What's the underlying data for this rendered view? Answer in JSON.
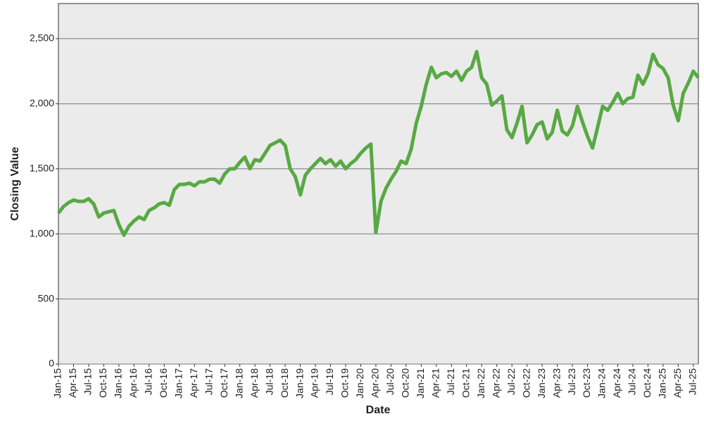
{
  "chart_data": {
    "type": "line",
    "x_label": "Date",
    "y_label": "Closing Value",
    "x": [
      "Jan-15",
      "Feb-15",
      "Mar-15",
      "Apr-15",
      "May-15",
      "Jun-15",
      "Jul-15",
      "Aug-15",
      "Sep-15",
      "Oct-15",
      "Nov-15",
      "Dec-15",
      "Jan-16",
      "Feb-16",
      "Mar-16",
      "Apr-16",
      "May-16",
      "Jun-16",
      "Jul-16",
      "Aug-16",
      "Sep-16",
      "Oct-16",
      "Nov-16",
      "Dec-16",
      "Jan-17",
      "Feb-17",
      "Mar-17",
      "Apr-17",
      "May-17",
      "Jun-17",
      "Jul-17",
      "Aug-17",
      "Sep-17",
      "Oct-17",
      "Nov-17",
      "Dec-17",
      "Jan-18",
      "Feb-18",
      "Mar-18",
      "Apr-18",
      "May-18",
      "Jun-18",
      "Jul-18",
      "Aug-18",
      "Sep-18",
      "Oct-18",
      "Nov-18",
      "Dec-18",
      "Jan-19",
      "Feb-19",
      "Mar-19",
      "Apr-19",
      "May-19",
      "Jun-19",
      "Jul-19",
      "Aug-19",
      "Sep-19",
      "Oct-19",
      "Nov-19",
      "Dec-19",
      "Jan-20",
      "Feb-20",
      "Mar-20",
      "Apr-20",
      "May-20",
      "Jun-20",
      "Jul-20",
      "Aug-20",
      "Sep-20",
      "Oct-20",
      "Nov-20",
      "Dec-20",
      "Jan-21",
      "Feb-21",
      "Mar-21",
      "Apr-21",
      "May-21",
      "Jun-21",
      "Jul-21",
      "Aug-21",
      "Sep-21",
      "Oct-21",
      "Nov-21",
      "Dec-21",
      "Jan-22",
      "Feb-22",
      "Mar-22",
      "Apr-22",
      "May-22",
      "Jun-22",
      "Jul-22",
      "Aug-22",
      "Sep-22",
      "Oct-22",
      "Nov-22",
      "Dec-22",
      "Jan-23",
      "Feb-23",
      "Mar-23",
      "Apr-23",
      "May-23",
      "Jun-23",
      "Jul-23",
      "Aug-23",
      "Sep-23",
      "Oct-23",
      "Nov-23",
      "Dec-23",
      "Jan-24",
      "Feb-24",
      "Mar-24",
      "Apr-24",
      "May-24",
      "Jun-24",
      "Jul-24",
      "Aug-24",
      "Sep-24",
      "Oct-24",
      "Nov-24",
      "Dec-24",
      "Jan-25",
      "Feb-25",
      "Mar-25",
      "Apr-25",
      "May-25",
      "Jun-25",
      "Jul-25",
      "Aug-25"
    ],
    "series": [
      {
        "name": "Closing Value",
        "color": "#58a944",
        "values": [
          1160,
          1210,
          1240,
          1260,
          1250,
          1250,
          1270,
          1230,
          1130,
          1160,
          1170,
          1180,
          1070,
          990,
          1060,
          1100,
          1130,
          1110,
          1180,
          1200,
          1230,
          1240,
          1220,
          1340,
          1380,
          1380,
          1390,
          1370,
          1400,
          1400,
          1420,
          1420,
          1390,
          1460,
          1500,
          1500,
          1550,
          1590,
          1500,
          1570,
          1560,
          1620,
          1680,
          1700,
          1720,
          1680,
          1500,
          1440,
          1300,
          1450,
          1500,
          1540,
          1580,
          1540,
          1570,
          1520,
          1560,
          1500,
          1540,
          1570,
          1620,
          1660,
          1690,
          1010,
          1250,
          1350,
          1420,
          1480,
          1560,
          1540,
          1650,
          1850,
          1980,
          2150,
          2280,
          2200,
          2230,
          2240,
          2210,
          2250,
          2180,
          2250,
          2280,
          2400,
          2200,
          2150,
          1990,
          2020,
          2060,
          1800,
          1740,
          1850,
          1980,
          1700,
          1760,
          1840,
          1860,
          1730,
          1780,
          1950,
          1790,
          1760,
          1830,
          1980,
          1860,
          1750,
          1660,
          1820,
          1980,
          1950,
          2010,
          2080,
          2000,
          2040,
          2050,
          2220,
          2150,
          2230,
          2380,
          2300,
          2270,
          2200,
          1990,
          1870,
          2080,
          2160,
          2250,
          2200
        ]
      }
    ],
    "xlim": [
      "Jan-15",
      "Aug-25"
    ],
    "xticks": [
      "Jan-15",
      "Apr-15",
      "Jul-15",
      "Oct-15",
      "Jan-16",
      "Apr-16",
      "Jul-16",
      "Oct-16",
      "Jan-17",
      "Apr-17",
      "Jul-17",
      "Oct-17",
      "Jan-18",
      "Apr-18",
      "Jul-18",
      "Oct-18",
      "Jan-19",
      "Apr-19",
      "Jul-19",
      "Oct-19",
      "Jan-20",
      "Apr-20",
      "Jul-20",
      "Oct-20",
      "Jan-21",
      "Apr-21",
      "Jul-21",
      "Oct-21",
      "Jan-22",
      "Apr-22",
      "Jul-22",
      "Oct-22",
      "Jan-23",
      "Apr-23",
      "Jul-23",
      "Oct-23",
      "Jan-24",
      "Apr-24",
      "Jul-24",
      "Oct-24",
      "Jan-25",
      "Apr-25",
      "Jul-25"
    ],
    "ylim": [
      0,
      2770
    ],
    "yticks": [
      0,
      500,
      {
        "value": 1000,
        "label": "1,000"
      },
      {
        "value": 1500,
        "label": "1,500"
      },
      {
        "value": 2000,
        "label": "2,000"
      },
      {
        "value": 2500,
        "label": "2,500"
      }
    ],
    "grid": true
  }
}
